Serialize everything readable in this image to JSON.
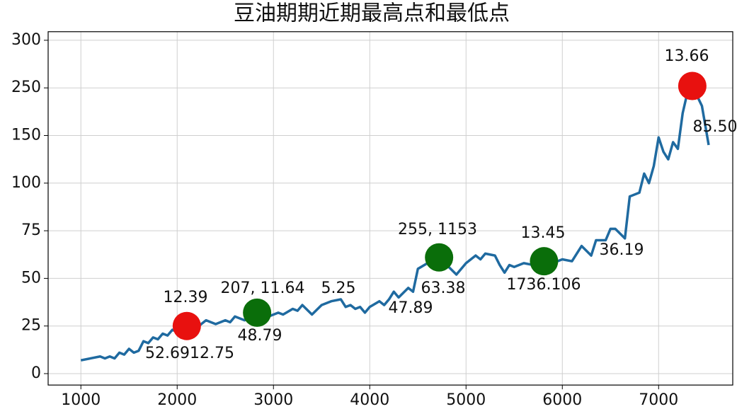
{
  "chart_data": {
    "type": "line",
    "title": "豆油期期近期最高点和最低点",
    "grid": true,
    "xlim": [
      660,
      7770
    ],
    "xticks": [
      1000,
      2000,
      3000,
      4000,
      5000,
      6000,
      7000
    ],
    "ylim": [
      -6,
      309
    ],
    "yticks": [
      0,
      25,
      50,
      75,
      100,
      150,
      250,
      300
    ],
    "series": [
      {
        "color": "#1f6aa0",
        "x": [
          1000,
          1100,
          1200,
          1250,
          1300,
          1350,
          1400,
          1450,
          1500,
          1550,
          1600,
          1650,
          1700,
          1750,
          1800,
          1850,
          1900,
          1950,
          2000,
          2050,
          2100,
          2200,
          2300,
          2400,
          2500,
          2550,
          2600,
          2700,
          2800,
          2850,
          2950,
          3050,
          3100,
          3200,
          3250,
          3300,
          3400,
          3500,
          3600,
          3700,
          3750,
          3800,
          3850,
          3900,
          3950,
          4000,
          4100,
          4150,
          4200,
          4250,
          4300,
          4400,
          4450,
          4500,
          4600,
          4700,
          4800,
          4900,
          5000,
          5100,
          5150,
          5200,
          5300,
          5350,
          5400,
          5450,
          5500,
          5600,
          5700,
          5800,
          5900,
          6000,
          6100,
          6200,
          6300,
          6350,
          6450,
          6500,
          6550,
          6650,
          6700,
          6800,
          6850,
          6900,
          6950,
          7000,
          7050,
          7100,
          7150,
          7200,
          7250,
          7300,
          7350,
          7450,
          7520
        ],
        "values": [
          7,
          8,
          9,
          8,
          9,
          8,
          11,
          10,
          13,
          11,
          12,
          17,
          16,
          19,
          18,
          21,
          20,
          23,
          22,
          24,
          25,
          24,
          28,
          26,
          28,
          27,
          30,
          28,
          31,
          32,
          30,
          32,
          31,
          34,
          33,
          36,
          31,
          36,
          38,
          39,
          35,
          36,
          34,
          35,
          32,
          35,
          38,
          36,
          39,
          43,
          40,
          45,
          43,
          55,
          58,
          60,
          57,
          52,
          58,
          62,
          60,
          63,
          62,
          57,
          53,
          57,
          56,
          58,
          57,
          59,
          58,
          60,
          59,
          67,
          62,
          70,
          70,
          76,
          76,
          71,
          93,
          95,
          110,
          100,
          118,
          148,
          133,
          125,
          143,
          136,
          197,
          241,
          252,
          212,
          140
        ]
      }
    ],
    "markers": [
      {
        "color": "#e8110f",
        "x": [
          2100,
          7350
        ],
        "values": [
          25,
          252
        ]
      },
      {
        "color": "#0a6e0a",
        "x": [
          2830,
          4720,
          5810
        ],
        "values": [
          32,
          61,
          59
        ]
      }
    ],
    "annotations": [
      "12.39",
      "52.6912.75",
      "207, 11.64",
      "48.79",
      "5.25",
      "255, 1153",
      "63.38",
      "47.89",
      "13.45",
      "1736.106",
      "36.19",
      "13.66",
      "85.50"
    ]
  }
}
